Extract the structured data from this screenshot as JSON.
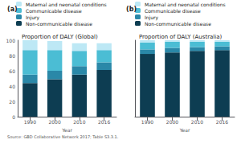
{
  "chart_data": [
    {
      "type": "bar",
      "title": "Proportion of DALY (Global)",
      "xlabel": "Year",
      "annotations": [
        "(a)",
        "Source: GBD Collaborative Network 2017; Table S3.3.1."
      ],
      "categories": [
        "1990",
        "2000",
        "2010",
        "2016"
      ],
      "series": [
        {
          "name": "Non-communicable disease",
          "color": "#0d3d52",
          "values": [
            44,
            49,
            55,
            61
          ]
        },
        {
          "name": "Injury",
          "color": "#2a88a8",
          "values": [
            11,
            11,
            11,
            10
          ]
        },
        {
          "name": "Communicable disease",
          "color": "#4bbdd4",
          "values": [
            32,
            27,
            20,
            16
          ]
        },
        {
          "name": "Maternal and neonatal conditions",
          "color": "#bde8f5",
          "values": [
            13,
            12,
            10,
            9
          ]
        }
      ],
      "ylim": [
        0,
        100
      ],
      "yticks": [
        0,
        20,
        40,
        60,
        80,
        100
      ],
      "stacked": true,
      "grid": false,
      "legend": "top"
    },
    {
      "type": "bar",
      "title": "Proportion of DALY (Australia)",
      "xlabel": "Year",
      "annotations": [
        "(b)"
      ],
      "categories": [
        "1990",
        "2000",
        "2010",
        "2016"
      ],
      "series": [
        {
          "name": "Non-communicable disease",
          "color": "#0d3d52",
          "values": [
            82,
            84,
            86,
            87
          ]
        },
        {
          "name": "Injury",
          "color": "#2a88a8",
          "values": [
            6,
            6,
            5,
            5
          ]
        },
        {
          "name": "Communicable disease",
          "color": "#4bbdd4",
          "values": [
            9,
            8,
            7,
            6
          ]
        },
        {
          "name": "Maternal and neonatal conditions",
          "color": "#bde8f5",
          "values": [
            3,
            2,
            2,
            2
          ]
        }
      ],
      "ylim": [
        0,
        100
      ],
      "yticks": [
        0,
        20,
        40,
        60,
        80,
        100
      ],
      "stacked": true,
      "grid": false,
      "legend": "top",
      "tick_labels": "x"
    }
  ]
}
